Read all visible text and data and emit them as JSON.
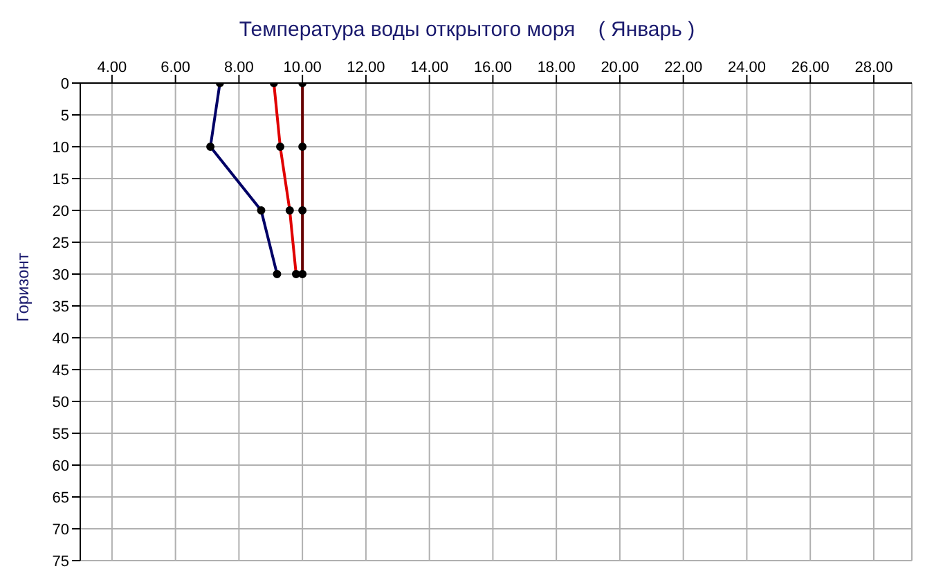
{
  "chart_data": {
    "type": "line",
    "title": "Температура воды открытого моря    ( Январь )",
    "ylabel": "Горизонт",
    "xlim": [
      3,
      29.2
    ],
    "xticks": [
      {
        "value": 4,
        "label": "4.00"
      },
      {
        "value": 6,
        "label": "6.00"
      },
      {
        "value": 8,
        "label": "8.00"
      },
      {
        "value": 10,
        "label": "10.00"
      },
      {
        "value": 12,
        "label": "12.00"
      },
      {
        "value": 14,
        "label": "14.00"
      },
      {
        "value": 16,
        "label": "16.00"
      },
      {
        "value": 18,
        "label": "18.00"
      },
      {
        "value": 20,
        "label": "20.00"
      },
      {
        "value": 22,
        "label": "22.00"
      },
      {
        "value": 24,
        "label": "24.00"
      },
      {
        "value": 26,
        "label": "26.00"
      },
      {
        "value": 28,
        "label": "28.00"
      }
    ],
    "ylim": [
      75,
      0
    ],
    "yticks": [
      0,
      5,
      10,
      15,
      20,
      25,
      30,
      35,
      40,
      45,
      50,
      55,
      60,
      65,
      70,
      75
    ],
    "grid": true,
    "marker": "circle",
    "line_style": "solid",
    "series": [
      {
        "color": "#000066",
        "x": [
          7.4,
          7.1,
          8.7,
          9.2
        ],
        "values": [
          0,
          10,
          20,
          30
        ]
      },
      {
        "color": "#e00000",
        "x": [
          9.1,
          9.3,
          9.6,
          9.8
        ],
        "values": [
          0,
          10,
          20,
          30
        ]
      },
      {
        "color": "#660000",
        "x": [
          10.0,
          10.0,
          10.0,
          10.0
        ],
        "values": [
          0,
          10,
          20,
          30
        ]
      }
    ]
  }
}
